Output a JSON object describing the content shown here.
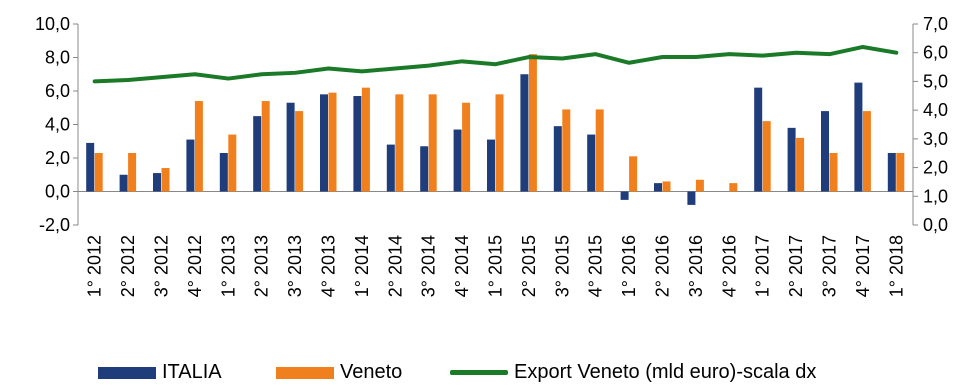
{
  "chart_data": {
    "type": "bar",
    "categories": [
      "1° 2012",
      "2° 2012",
      "3° 2012",
      "4° 2012",
      "1° 2013",
      "2° 2013",
      "3° 2013",
      "4° 2013",
      "1° 2014",
      "2° 2014",
      "3° 2014",
      "4° 2014",
      "1° 2015",
      "2° 2015",
      "3° 2015",
      "4° 2015",
      "1° 2016",
      "2° 2016",
      "3° 2016",
      "4° 2016",
      "1° 2017",
      "2° 2017",
      "3° 2017",
      "4° 2017",
      "1° 2018"
    ],
    "series": [
      {
        "name": "ITALIA",
        "axis": "left",
        "kind": "bar",
        "color": "#1f3d7a",
        "values": [
          2.9,
          1.0,
          1.1,
          3.1,
          2.3,
          4.5,
          5.3,
          5.8,
          5.7,
          2.8,
          2.7,
          3.7,
          3.1,
          7.0,
          3.9,
          3.4,
          -0.5,
          0.5,
          -0.8,
          0.0,
          6.2,
          3.8,
          4.8,
          6.5,
          2.3
        ]
      },
      {
        "name": "Veneto",
        "axis": "left",
        "kind": "bar",
        "color": "#f07f1e",
        "values": [
          2.3,
          2.3,
          1.4,
          5.4,
          3.4,
          5.4,
          4.8,
          5.9,
          6.2,
          5.8,
          5.8,
          5.3,
          5.8,
          8.2,
          4.9,
          4.9,
          2.1,
          0.6,
          0.7,
          0.5,
          4.2,
          3.2,
          2.3,
          4.8,
          2.3
        ]
      },
      {
        "name": "Export Veneto (mld euro)-scala dx",
        "axis": "right",
        "kind": "line",
        "color": "#1a7a28",
        "values": [
          5.0,
          5.05,
          5.15,
          5.25,
          5.1,
          5.25,
          5.3,
          5.45,
          5.35,
          5.45,
          5.55,
          5.7,
          5.6,
          5.85,
          5.8,
          5.95,
          5.65,
          5.85,
          5.85,
          5.95,
          5.9,
          6.0,
          5.95,
          6.2,
          6.0
        ]
      }
    ],
    "y_left": {
      "ylim": [
        -2.0,
        10.0
      ],
      "ticks": [
        "-2,0",
        "0,0",
        "2,0",
        "4,0",
        "6,0",
        "8,0",
        "10,0"
      ],
      "tick_values": [
        -2,
        0,
        2,
        4,
        6,
        8,
        10
      ]
    },
    "y_right": {
      "ylim": [
        0.0,
        7.0
      ],
      "ticks": [
        "0,0",
        "1,0",
        "2,0",
        "3,0",
        "4,0",
        "5,0",
        "6,0",
        "7,0"
      ],
      "tick_values": [
        0,
        1,
        2,
        3,
        4,
        5,
        6,
        7
      ]
    },
    "grid": false,
    "legend_position": "bottom"
  },
  "legend": {
    "items": [
      "ITALIA",
      "Veneto",
      "Export Veneto (mld euro)-scala dx"
    ],
    "colors": [
      "#1f3d7a",
      "#f07f1e",
      "#1a7a28"
    ]
  }
}
